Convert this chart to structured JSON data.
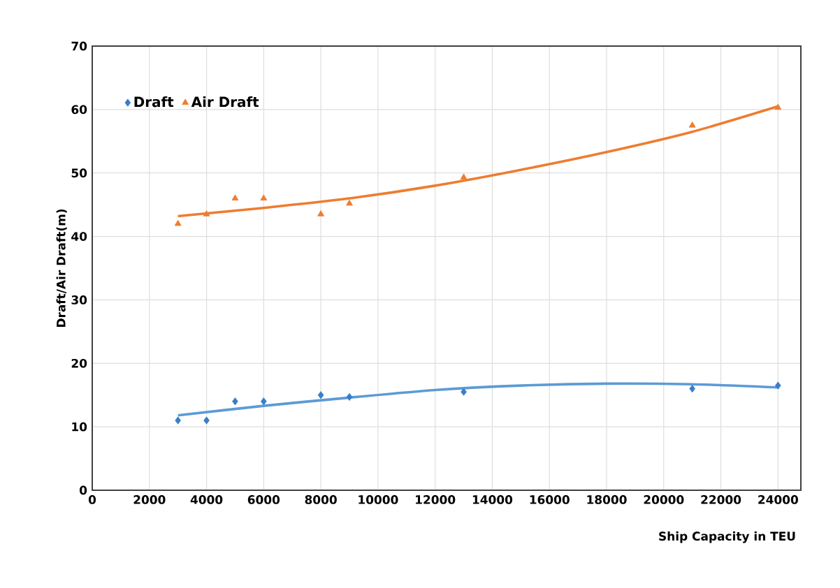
{
  "chart_data": {
    "type": "scatter",
    "xlabel": "Ship Capacity in TEU",
    "ylabel": "Draft/Air Draft(m)",
    "xlim": [
      0,
      24800
    ],
    "xticks": [
      0,
      2000,
      4000,
      6000,
      8000,
      10000,
      12000,
      14000,
      16000,
      18000,
      20000,
      22000,
      24000
    ],
    "ylim": [
      0,
      70
    ],
    "yticks": [
      0,
      10,
      20,
      30,
      40,
      50,
      60,
      70
    ],
    "grid": true,
    "legend": "top left",
    "series": [
      {
        "name": "Draft",
        "color": "#3a7dc8",
        "marker": "diamond",
        "x": [
          3000,
          4000,
          5000,
          6000,
          8000,
          9000,
          13000,
          21000,
          24000
        ],
        "values": [
          11,
          11,
          14,
          14,
          15,
          14.7,
          15.5,
          16,
          16.5
        ]
      },
      {
        "name": "Air Draft",
        "color": "#ed7d31",
        "marker": "triangle",
        "x": [
          3000,
          4000,
          5000,
          6000,
          8000,
          9000,
          13000,
          21000,
          24000
        ],
        "values": [
          42,
          43.5,
          46,
          46,
          43.5,
          45.2,
          49.3,
          57.5,
          60.3
        ]
      },
      {
        "type": "line",
        "color": "#5b9bd5",
        "x": [
          3000,
          6000,
          9000,
          12000,
          15000,
          18000,
          21000,
          24000
        ],
        "values": [
          11.8,
          13.3,
          14.6,
          15.8,
          16.5,
          16.8,
          16.7,
          16.2
        ]
      },
      {
        "type": "line",
        "color": "#ed7d31",
        "x": [
          3000,
          6000,
          9000,
          12000,
          15000,
          18000,
          21000,
          24000
        ],
        "values": [
          43.2,
          44.5,
          46,
          48,
          50.5,
          53.3,
          56.5,
          60.5
        ]
      }
    ]
  }
}
